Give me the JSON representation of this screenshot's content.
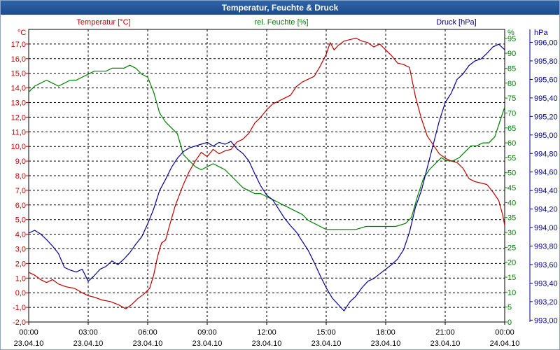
{
  "window": {
    "title": "Temperatur, Feuchte & Druck"
  },
  "colors": {
    "temperature": "#c00000",
    "humidity": "#008000",
    "pressure": "#000099",
    "grid": "#000000",
    "axis": "#000000"
  },
  "chart_data": {
    "type": "line",
    "title": "Temperatur, Feuchte & Druck",
    "x_ticks": [
      {
        "h": 0,
        "time": "00:00",
        "date": "23.04.10"
      },
      {
        "h": 3,
        "time": "03:00",
        "date": "23.04.10"
      },
      {
        "h": 6,
        "time": "06:00",
        "date": "23.04.10"
      },
      {
        "h": 9,
        "time": "09:00",
        "date": "23.04.10"
      },
      {
        "h": 12,
        "time": "12:00",
        "date": "23.04.10"
      },
      {
        "h": 15,
        "time": "15:00",
        "date": "23.04.10"
      },
      {
        "h": 18,
        "time": "18:00",
        "date": "23.04.10"
      },
      {
        "h": 21,
        "time": "21:00",
        "date": "23.04.10"
      },
      {
        "h": 24,
        "time": "00:00",
        "date": "24.04.10"
      }
    ],
    "xlim": [
      0,
      24
    ],
    "axes": {
      "temperature": {
        "label": "Temperatur [°C]",
        "unit": "°C",
        "ylim": [
          -2,
          18
        ],
        "ticks": [
          "-2,0",
          "-1,0",
          "0,0",
          "1,0",
          "2,0",
          "3,0",
          "4,0",
          "5,0",
          "6,0",
          "7,0",
          "8,0",
          "9,0",
          "10,0",
          "11,0",
          "12,0",
          "13,0",
          "14,0",
          "15,0",
          "16,0",
          "17,0"
        ]
      },
      "humidity": {
        "label": "rel. Feuchte [%]",
        "unit": "%",
        "ylim": [
          0,
          98
        ],
        "ticks": [
          "0",
          "5",
          "10",
          "15",
          "20",
          "25",
          "30",
          "35",
          "40",
          "45",
          "50",
          "55",
          "60",
          "65",
          "70",
          "75",
          "80",
          "85",
          "90",
          "95"
        ]
      },
      "pressure": {
        "label": "Druck [hPa]",
        "unit": "hPa",
        "ylim": [
          992.98,
          996.14
        ],
        "ticks": [
          "993,00",
          "993,20",
          "993,40",
          "993,60",
          "993,80",
          "994,00",
          "994,20",
          "994,40",
          "994,60",
          "994,80",
          "995,00",
          "995,20",
          "995,40",
          "995,60",
          "995,80",
          "996,00"
        ]
      }
    },
    "series": [
      {
        "name": "Temperatur [°C]",
        "axis": "temperature",
        "points": [
          [
            0,
            1.4
          ],
          [
            0.3,
            1.2
          ],
          [
            0.6,
            0.9
          ],
          [
            0.9,
            0.7
          ],
          [
            1.2,
            0.9
          ],
          [
            1.5,
            0.6
          ],
          [
            1.9,
            0.4
          ],
          [
            2.3,
            0.3
          ],
          [
            2.7,
            0.0
          ],
          [
            3.0,
            -0.2
          ],
          [
            3.3,
            -0.3
          ],
          [
            3.7,
            -0.5
          ],
          [
            4.1,
            -0.6
          ],
          [
            4.5,
            -0.8
          ],
          [
            4.9,
            -1.1
          ],
          [
            5.2,
            -0.8
          ],
          [
            5.5,
            -0.4
          ],
          [
            5.8,
            -0.1
          ],
          [
            6.1,
            0.3
          ],
          [
            6.3,
            1.2
          ],
          [
            6.5,
            2.5
          ],
          [
            6.7,
            3.4
          ],
          [
            6.9,
            3.6
          ],
          [
            7.1,
            4.6
          ],
          [
            7.4,
            6.0
          ],
          [
            7.8,
            7.4
          ],
          [
            8.1,
            8.3
          ],
          [
            8.4,
            9.0
          ],
          [
            8.7,
            9.6
          ],
          [
            9.0,
            9.3
          ],
          [
            9.3,
            9.8
          ],
          [
            9.6,
            9.5
          ],
          [
            9.9,
            9.7
          ],
          [
            10.2,
            9.8
          ],
          [
            10.5,
            10.3
          ],
          [
            10.8,
            10.5
          ],
          [
            11.1,
            10.9
          ],
          [
            11.4,
            11.6
          ],
          [
            11.7,
            12.0
          ],
          [
            12.0,
            12.5
          ],
          [
            12.3,
            12.9
          ],
          [
            12.6,
            13.1
          ],
          [
            12.9,
            13.3
          ],
          [
            13.2,
            13.5
          ],
          [
            13.5,
            14.1
          ],
          [
            13.8,
            14.4
          ],
          [
            14.1,
            14.6
          ],
          [
            14.4,
            14.8
          ],
          [
            14.7,
            15.5
          ],
          [
            15.0,
            16.3
          ],
          [
            15.2,
            17.1
          ],
          [
            15.4,
            16.6
          ],
          [
            15.6,
            16.9
          ],
          [
            15.9,
            17.2
          ],
          [
            16.2,
            17.3
          ],
          [
            16.5,
            17.4
          ],
          [
            16.8,
            17.2
          ],
          [
            17.1,
            17.1
          ],
          [
            17.4,
            16.8
          ],
          [
            17.7,
            17.0
          ],
          [
            18.0,
            16.6
          ],
          [
            18.3,
            16.2
          ],
          [
            18.6,
            15.7
          ],
          [
            18.9,
            15.6
          ],
          [
            19.2,
            15.4
          ],
          [
            19.5,
            13.4
          ],
          [
            19.8,
            11.9
          ],
          [
            20.1,
            10.7
          ],
          [
            20.4,
            10.1
          ],
          [
            20.7,
            9.5
          ],
          [
            21.0,
            9.2
          ],
          [
            21.3,
            9.0
          ],
          [
            21.6,
            8.9
          ],
          [
            21.9,
            8.5
          ],
          [
            22.2,
            7.8
          ],
          [
            22.5,
            7.6
          ],
          [
            22.8,
            7.5
          ],
          [
            23.1,
            7.4
          ],
          [
            23.4,
            6.9
          ],
          [
            23.7,
            6.3
          ],
          [
            23.9,
            5.3
          ],
          [
            24.0,
            4.6
          ]
        ]
      },
      {
        "name": "rel. Feuchte [%]",
        "axis": "humidity",
        "points": [
          [
            0,
            77
          ],
          [
            0.3,
            79
          ],
          [
            0.6,
            80
          ],
          [
            0.9,
            81
          ],
          [
            1.2,
            80
          ],
          [
            1.5,
            79
          ],
          [
            1.8,
            80
          ],
          [
            2.1,
            81
          ],
          [
            2.4,
            81
          ],
          [
            2.7,
            82
          ],
          [
            3.0,
            83
          ],
          [
            3.3,
            84
          ],
          [
            3.6,
            84
          ],
          [
            3.9,
            84
          ],
          [
            4.2,
            85
          ],
          [
            4.5,
            85
          ],
          [
            4.8,
            85
          ],
          [
            5.1,
            86
          ],
          [
            5.4,
            85
          ],
          [
            5.7,
            83
          ],
          [
            6.0,
            82
          ],
          [
            6.3,
            77
          ],
          [
            6.6,
            70
          ],
          [
            6.9,
            67
          ],
          [
            7.2,
            65
          ],
          [
            7.5,
            63
          ],
          [
            7.8,
            56
          ],
          [
            8.1,
            54
          ],
          [
            8.4,
            52
          ],
          [
            8.7,
            51
          ],
          [
            9.0,
            52
          ],
          [
            9.3,
            53
          ],
          [
            9.6,
            52
          ],
          [
            9.9,
            51
          ],
          [
            10.2,
            49
          ],
          [
            10.5,
            47
          ],
          [
            10.8,
            45
          ],
          [
            11.1,
            44
          ],
          [
            11.4,
            43
          ],
          [
            11.7,
            43
          ],
          [
            12.0,
            42
          ],
          [
            12.3,
            41
          ],
          [
            12.6,
            40
          ],
          [
            12.9,
            39
          ],
          [
            13.2,
            38
          ],
          [
            13.5,
            37
          ],
          [
            13.8,
            36
          ],
          [
            14.1,
            34
          ],
          [
            14.4,
            33
          ],
          [
            14.7,
            32
          ],
          [
            15.0,
            31
          ],
          [
            15.3,
            31
          ],
          [
            15.6,
            31
          ],
          [
            16.0,
            31
          ],
          [
            16.5,
            31
          ],
          [
            17.0,
            32
          ],
          [
            17.5,
            32
          ],
          [
            18.0,
            32
          ],
          [
            18.5,
            32
          ],
          [
            19.0,
            33
          ],
          [
            19.3,
            35
          ],
          [
            19.6,
            42
          ],
          [
            19.9,
            48
          ],
          [
            20.2,
            51
          ],
          [
            20.5,
            53
          ],
          [
            20.8,
            55
          ],
          [
            21.1,
            54
          ],
          [
            21.4,
            54
          ],
          [
            21.7,
            55
          ],
          [
            22.0,
            57
          ],
          [
            22.3,
            59
          ],
          [
            22.6,
            59
          ],
          [
            22.9,
            60
          ],
          [
            23.2,
            60
          ],
          [
            23.5,
            62
          ],
          [
            23.8,
            68
          ],
          [
            24.0,
            72
          ]
        ]
      },
      {
        "name": "Druck [hPa]",
        "axis": "pressure",
        "points": [
          [
            0,
            993.94
          ],
          [
            0.3,
            993.97
          ],
          [
            0.6,
            993.93
          ],
          [
            0.9,
            993.87
          ],
          [
            1.2,
            993.8
          ],
          [
            1.5,
            993.72
          ],
          [
            1.8,
            993.57
          ],
          [
            2.1,
            993.54
          ],
          [
            2.4,
            993.52
          ],
          [
            2.7,
            993.55
          ],
          [
            3.0,
            993.42
          ],
          [
            3.3,
            993.48
          ],
          [
            3.6,
            993.55
          ],
          [
            3.9,
            993.58
          ],
          [
            4.2,
            993.64
          ],
          [
            4.5,
            993.6
          ],
          [
            4.8,
            993.66
          ],
          [
            5.1,
            993.73
          ],
          [
            5.4,
            993.82
          ],
          [
            5.7,
            993.9
          ],
          [
            6.0,
            994.04
          ],
          [
            6.3,
            994.2
          ],
          [
            6.6,
            994.4
          ],
          [
            6.9,
            994.52
          ],
          [
            7.2,
            994.65
          ],
          [
            7.5,
            994.75
          ],
          [
            7.8,
            994.82
          ],
          [
            8.1,
            994.86
          ],
          [
            8.4,
            994.88
          ],
          [
            8.7,
            994.9
          ],
          [
            9.0,
            994.92
          ],
          [
            9.3,
            994.88
          ],
          [
            9.6,
            994.92
          ],
          [
            9.9,
            994.9
          ],
          [
            10.2,
            994.93
          ],
          [
            10.5,
            994.85
          ],
          [
            10.8,
            994.8
          ],
          [
            11.1,
            994.72
          ],
          [
            11.4,
            994.58
          ],
          [
            11.7,
            994.45
          ],
          [
            12.0,
            994.35
          ],
          [
            12.3,
            994.3
          ],
          [
            12.6,
            994.2
          ],
          [
            12.9,
            994.1
          ],
          [
            13.2,
            994.02
          ],
          [
            13.5,
            993.95
          ],
          [
            13.8,
            993.85
          ],
          [
            14.1,
            993.75
          ],
          [
            14.4,
            993.62
          ],
          [
            14.7,
            993.48
          ],
          [
            15.0,
            993.35
          ],
          [
            15.3,
            993.24
          ],
          [
            15.6,
            993.17
          ],
          [
            15.9,
            993.1
          ],
          [
            16.2,
            993.2
          ],
          [
            16.5,
            993.26
          ],
          [
            16.8,
            993.35
          ],
          [
            17.1,
            993.42
          ],
          [
            17.4,
            993.45
          ],
          [
            17.7,
            993.5
          ],
          [
            18.0,
            993.55
          ],
          [
            18.3,
            993.6
          ],
          [
            18.6,
            993.66
          ],
          [
            18.9,
            993.76
          ],
          [
            19.2,
            993.95
          ],
          [
            19.5,
            994.22
          ],
          [
            19.8,
            994.4
          ],
          [
            20.1,
            994.65
          ],
          [
            20.4,
            994.9
          ],
          [
            20.7,
            995.15
          ],
          [
            21.0,
            995.35
          ],
          [
            21.3,
            995.45
          ],
          [
            21.6,
            995.6
          ],
          [
            21.9,
            995.66
          ],
          [
            22.2,
            995.75
          ],
          [
            22.5,
            995.8
          ],
          [
            22.8,
            995.82
          ],
          [
            23.1,
            995.88
          ],
          [
            23.4,
            995.95
          ],
          [
            23.7,
            995.98
          ],
          [
            24.0,
            995.92
          ]
        ]
      }
    ]
  }
}
